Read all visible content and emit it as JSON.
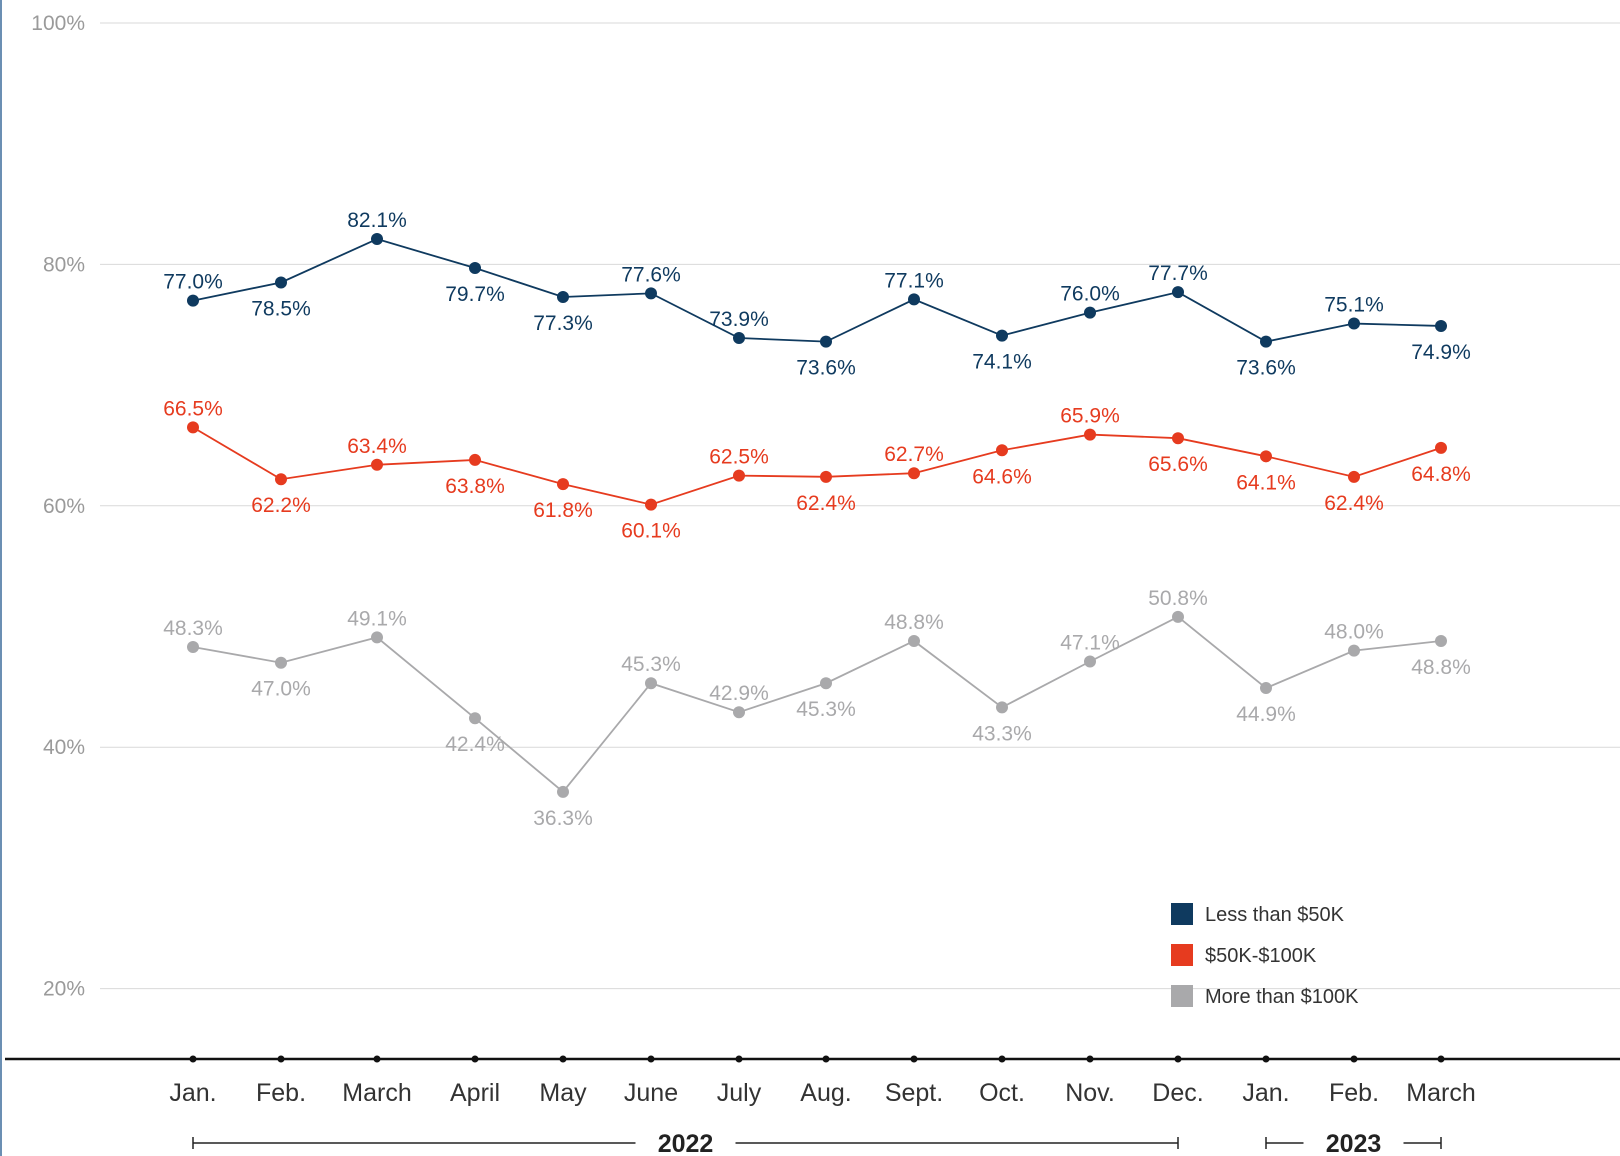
{
  "chart_data": {
    "type": "line",
    "title": "",
    "xlabel": "",
    "ylabel": "",
    "ylim": [
      0,
      100
    ],
    "y_ticks": [
      "100%",
      "80%",
      "60%",
      "40%",
      "20%"
    ],
    "y_tick_values": [
      100,
      80,
      60,
      40,
      20
    ],
    "grid": true,
    "legend_position": "bottom-right",
    "categories": [
      "Jan.",
      "Feb.",
      "March",
      "April",
      "May",
      "June",
      "July",
      "Aug.",
      "Sept.",
      "Oct.",
      "Nov.",
      "Dec.",
      "Jan.",
      "Feb.",
      "March"
    ],
    "years": [
      {
        "label": "2022",
        "start_index": 0,
        "end_index": 11
      },
      {
        "label": "2023",
        "start_index": 12,
        "end_index": 14
      }
    ],
    "series": [
      {
        "name": "Less than $50K",
        "color": "#0f3a5f",
        "values": [
          77.0,
          78.5,
          82.1,
          79.7,
          77.3,
          77.6,
          73.9,
          73.6,
          77.1,
          74.1,
          76.0,
          77.7,
          73.6,
          75.1,
          74.9
        ],
        "labels": [
          "77.0%",
          "78.5%",
          "82.1%",
          "79.7%",
          "77.3%",
          "77.6%",
          "73.9%",
          "73.6%",
          "77.1%",
          "74.1%",
          "76.0%",
          "77.7%",
          "73.6%",
          "75.1%",
          "74.9%"
        ],
        "label_position": [
          "above",
          "below",
          "above",
          "below",
          "below",
          "above",
          "above",
          "below",
          "above",
          "below",
          "above",
          "above",
          "below",
          "above",
          "below"
        ]
      },
      {
        "name": "$50K-$100K",
        "color": "#e63b1f",
        "values": [
          66.5,
          62.2,
          63.4,
          63.8,
          61.8,
          60.1,
          62.5,
          62.4,
          62.7,
          64.6,
          65.9,
          65.6,
          64.1,
          62.4,
          64.8
        ],
        "labels": [
          "66.5%",
          "62.2%",
          "63.4%",
          "63.8%",
          "61.8%",
          "60.1%",
          "62.5%",
          "62.4%",
          "62.7%",
          "64.6%",
          "65.9%",
          "65.6%",
          "64.1%",
          "62.4%",
          "64.8%"
        ],
        "label_position": [
          "above",
          "below",
          "above",
          "below",
          "below",
          "below",
          "above",
          "below",
          "above",
          "below",
          "above",
          "below",
          "below",
          "below",
          "below"
        ]
      },
      {
        "name": "More than $100K",
        "color": "#a9a9ab",
        "values": [
          48.3,
          47.0,
          49.1,
          42.4,
          36.3,
          45.3,
          42.9,
          45.3,
          48.8,
          43.3,
          47.1,
          50.8,
          44.9,
          48.0,
          48.8
        ],
        "labels": [
          "48.3%",
          "47.0%",
          "49.1%",
          "42.4%",
          "36.3%",
          "45.3%",
          "42.9%",
          "45.3%",
          "48.8%",
          "43.3%",
          "47.1%",
          "50.8%",
          "44.9%",
          "48.0%",
          "48.8%"
        ],
        "label_position": [
          "above",
          "below",
          "above",
          "below",
          "below",
          "above",
          "above",
          "below",
          "above",
          "below",
          "above",
          "above",
          "below",
          "above",
          "below"
        ]
      }
    ]
  }
}
